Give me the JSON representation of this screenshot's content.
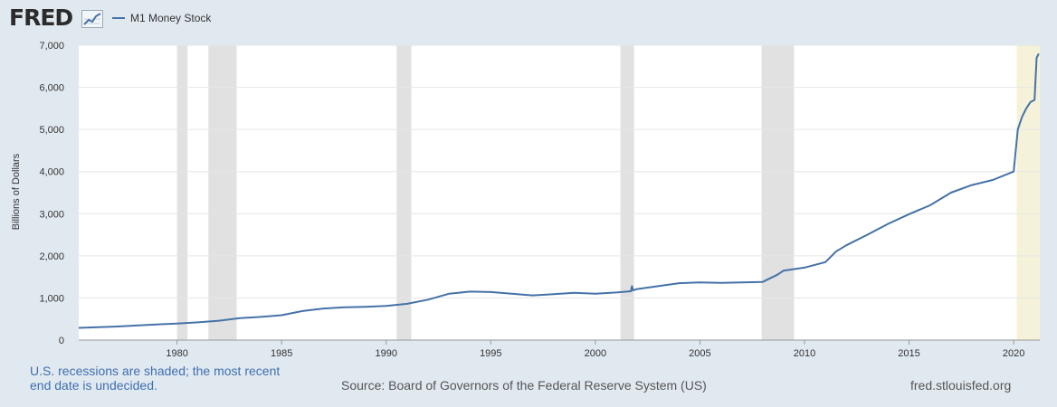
{
  "header": {
    "logo_text": "FRED",
    "logo_icon": "fred-chart-icon",
    "legend_label": "M1 Money Stock"
  },
  "footer": {
    "recession_note": "U.S. recessions are shaded; the most recent end date is undecided.",
    "source": "Source: Board of Governors of the Federal Reserve System (US)",
    "site": "fred.stlouisfed.org"
  },
  "colors": {
    "series": "#4572a7",
    "recession": "#e1e1e1",
    "current_recession": "#f5f2d9",
    "page_bg": "#e1e9f0",
    "plot_bg": "#ffffff"
  },
  "chart_data": {
    "type": "line",
    "title": "",
    "xlabel": "",
    "ylabel": "Billions of Dollars",
    "xlim": [
      1975.3,
      2021.25
    ],
    "ylim": [
      0,
      7000
    ],
    "grid": true,
    "legend": "top-left",
    "x_ticks": [
      1980,
      1985,
      1990,
      1995,
      2000,
      2005,
      2010,
      2015,
      2020
    ],
    "x_tick_labels": [
      "1980",
      "1985",
      "1990",
      "1995",
      "2000",
      "2005",
      "2010",
      "2015",
      "2020"
    ],
    "y_ticks": [
      0,
      1000,
      2000,
      3000,
      4000,
      5000,
      6000,
      7000
    ],
    "y_tick_labels": [
      "0",
      "1,000",
      "2,000",
      "3,000",
      "4,000",
      "5,000",
      "6,000",
      "7,000"
    ],
    "recessions": [
      {
        "start": 1980.0,
        "end": 1980.5
      },
      {
        "start": 1981.5,
        "end": 1982.85
      },
      {
        "start": 1990.5,
        "end": 1991.2
      },
      {
        "start": 2001.2,
        "end": 2001.85
      },
      {
        "start": 2007.95,
        "end": 2009.5
      }
    ],
    "current_recession": {
      "start": 2020.15,
      "end": 2021.25
    },
    "series": [
      {
        "name": "M1 Money Stock",
        "x": [
          1975.3,
          1977,
          1979,
          1980,
          1981,
          1982,
          1983,
          1984,
          1985,
          1986,
          1987,
          1988,
          1989,
          1990,
          1991,
          1992,
          1993,
          1994,
          1995,
          1996,
          1997,
          1998,
          1999,
          2000,
          2001,
          2001.7,
          2001.75,
          2001.8,
          2002,
          2003,
          2004,
          2005,
          2006,
          2007,
          2008,
          2008.7,
          2009,
          2010,
          2011,
          2011.5,
          2012,
          2013,
          2014,
          2015,
          2016,
          2017,
          2018,
          2019,
          2020.0,
          2020.2,
          2020.4,
          2020.6,
          2020.8,
          2021.0,
          2021.1,
          2021.2
        ],
        "values": [
          290,
          320,
          370,
          390,
          420,
          460,
          520,
          550,
          590,
          690,
          750,
          780,
          790,
          810,
          860,
          960,
          1100,
          1150,
          1140,
          1100,
          1060,
          1090,
          1120,
          1100,
          1130,
          1160,
          1280,
          1180,
          1210,
          1280,
          1350,
          1370,
          1360,
          1370,
          1380,
          1550,
          1650,
          1720,
          1850,
          2100,
          2250,
          2500,
          2760,
          2990,
          3200,
          3500,
          3680,
          3800,
          4000,
          5000,
          5300,
          5500,
          5650,
          5700,
          6700,
          6800
        ]
      }
    ]
  }
}
